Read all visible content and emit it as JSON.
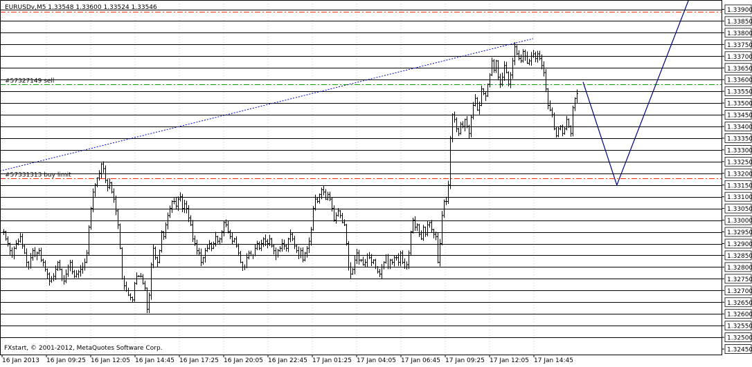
{
  "chart_data": {
    "type": "candlestick",
    "symbol_header": "EURUSDv,M5  1.33548 1.33600 1.33524 1.33546",
    "copyright": "FXstart, © 2001-2012, MetaQuotes Software Corp.",
    "ylim": [
      1.3245,
      1.339
    ],
    "y_ticks": [
      "1.33900",
      "1.33850",
      "1.33800",
      "1.33750",
      "1.33700",
      "1.33650",
      "1.33600",
      "1.33550",
      "1.33500",
      "1.33450",
      "1.33400",
      "1.33350",
      "1.33300",
      "1.33250",
      "1.33200",
      "1.33150",
      "1.33100",
      "1.33050",
      "1.33000",
      "1.32950",
      "1.32900",
      "1.32850",
      "1.32800",
      "1.32750",
      "1.32700",
      "1.32650",
      "1.32600",
      "1.32550",
      "1.32500",
      "1.32450"
    ],
    "x_ticks": [
      "16 Jan 2013",
      "16 Jan 09:25",
      "16 Jan 12:05",
      "16 Jan 14:45",
      "16 Jan 17:25",
      "16 Jan 20:05",
      "16 Jan 22:45",
      "17 Jan 01:25",
      "17 Jan 04:05",
      "17 Jan 06:45",
      "17 Jan 09:25",
      "17 Jan 12:05",
      "17 Jan 14:45"
    ],
    "horizontal_levels": [
      1.339,
      1.3385,
      1.338,
      1.3375,
      1.337,
      1.3365,
      1.336,
      1.3355,
      1.335,
      1.3345,
      1.334,
      1.3335,
      1.333,
      1.3325,
      1.332,
      1.3315,
      1.331,
      1.3305,
      1.33,
      1.3295,
      1.329,
      1.3285,
      1.328,
      1.3275,
      1.327,
      1.3265,
      1.326,
      1.3255,
      1.325
    ],
    "orders": [
      {
        "label": "#57327149 sell",
        "price": 1.3358
      },
      {
        "label": "#57331313 buy limit",
        "price": 1.3318
      }
    ],
    "red_dashed_levels": [
      1.3389,
      1.3318
    ],
    "projection_path": [
      [
        0,
        1.3359
      ],
      [
        16,
        1.3315
      ],
      [
        50,
        1.3394
      ]
    ],
    "trendline": [
      [
        0,
        1.3321
      ],
      [
        155,
        1.33775
      ]
    ],
    "colors": {
      "bars": "#000000",
      "levels": "#000000",
      "order_green": "#00a000",
      "order_red": "#ff2000",
      "projection": "#000080",
      "trend": "#0000c0"
    },
    "close_series": [
      1.3295,
      1.3292,
      1.329,
      1.3287,
      1.3285,
      1.3288,
      1.329,
      1.3291,
      1.3293,
      1.3289,
      1.3286,
      1.3282,
      1.328,
      1.3284,
      1.3287,
      1.3285,
      1.3286,
      1.3287,
      1.3283,
      1.3282,
      1.3279,
      1.3277,
      1.3274,
      1.3275,
      1.3276,
      1.3279,
      1.3282,
      1.3279,
      1.3275,
      1.3274,
      1.3277,
      1.328,
      1.3282,
      1.3278,
      1.3276,
      1.3277,
      1.3278,
      1.3279,
      1.328,
      1.3282,
      1.3286,
      1.3297,
      1.3305,
      1.3312,
      1.3315,
      1.3318,
      1.332,
      1.3324,
      1.3322,
      1.3317,
      1.3314,
      1.3316,
      1.3312,
      1.3309,
      1.3304,
      1.3298,
      1.3288,
      1.3275,
      1.3272,
      1.327,
      1.3268,
      1.3267,
      1.3266,
      1.3273,
      1.3276,
      1.3276,
      1.3276,
      1.3273,
      1.3271,
      1.3262,
      1.3268,
      1.3281,
      1.3288,
      1.3284,
      1.3282,
      1.3287,
      1.3295,
      1.3293,
      1.3298,
      1.3302,
      1.3305,
      1.3308,
      1.3308,
      1.3306,
      1.3309,
      1.331,
      1.3305,
      1.3307,
      1.3305,
      1.3301,
      1.3298,
      1.3292,
      1.329,
      1.3287,
      1.3286,
      1.3282,
      1.3284,
      1.3287,
      1.3288,
      1.329,
      1.3288,
      1.329,
      1.3293,
      1.3291,
      1.3292,
      1.3295,
      1.3299,
      1.3298,
      1.3295,
      1.3293,
      1.3291,
      1.3292,
      1.3289,
      1.3286,
      1.3282,
      1.328,
      1.328,
      1.3284,
      1.3286,
      1.3285,
      1.3285,
      1.3288,
      1.329,
      1.3288,
      1.329,
      1.3292,
      1.3291,
      1.329,
      1.3292,
      1.3289,
      1.3287,
      1.3285,
      1.3287,
      1.3288,
      1.329,
      1.3289,
      1.3288,
      1.3292,
      1.3294,
      1.3292,
      1.3289,
      1.3287,
      1.3285,
      1.3287,
      1.3283,
      1.3286,
      1.3288,
      1.3291,
      1.3296,
      1.3305,
      1.3309,
      1.3308,
      1.3311,
      1.3313,
      1.3312,
      1.3309,
      1.3311,
      1.3309,
      1.3305,
      1.33,
      1.3302,
      1.3304,
      1.3302,
      1.3299,
      1.3298,
      1.329,
      1.328,
      1.3277,
      1.3279,
      1.3283,
      1.3286,
      1.3283,
      1.3283,
      1.3281,
      1.3282,
      1.3285,
      1.3284,
      1.3282,
      1.3283,
      1.328,
      1.3278,
      1.3277,
      1.328,
      1.3282,
      1.3285,
      1.328,
      1.3283,
      1.3282,
      1.3284,
      1.3284,
      1.3282,
      1.3286,
      1.3282,
      1.328,
      1.3281,
      1.3286,
      1.3295,
      1.33,
      1.3297,
      1.3298,
      1.3294,
      1.3292,
      1.3297,
      1.3294,
      1.3298,
      1.3299,
      1.3296,
      1.3294,
      1.3293,
      1.3282,
      1.329,
      1.3302,
      1.3308,
      1.3308,
      1.3315,
      1.3335,
      1.3345,
      1.3343,
      1.3339,
      1.3337,
      1.3341,
      1.334,
      1.3343,
      1.334,
      1.3337,
      1.3344,
      1.3349,
      1.3352,
      1.3347,
      1.3349,
      1.3356,
      1.3354,
      1.3353,
      1.3358,
      1.3362,
      1.3368,
      1.3364,
      1.3368,
      1.3361,
      1.3358,
      1.3361,
      1.3366,
      1.3363,
      1.3358,
      1.3362,
      1.3368,
      1.3374,
      1.3371,
      1.3369,
      1.3368,
      1.3372,
      1.337,
      1.3367,
      1.3368,
      1.337,
      1.3371,
      1.3369,
      1.3371,
      1.3369,
      1.3366,
      1.3363,
      1.3356,
      1.3349,
      1.3347,
      1.3345,
      1.3339,
      1.3336,
      1.3339,
      1.334,
      1.3337,
      1.3339,
      1.3343,
      1.334,
      1.3337,
      1.3348,
      1.3352,
      1.3354
    ]
  }
}
